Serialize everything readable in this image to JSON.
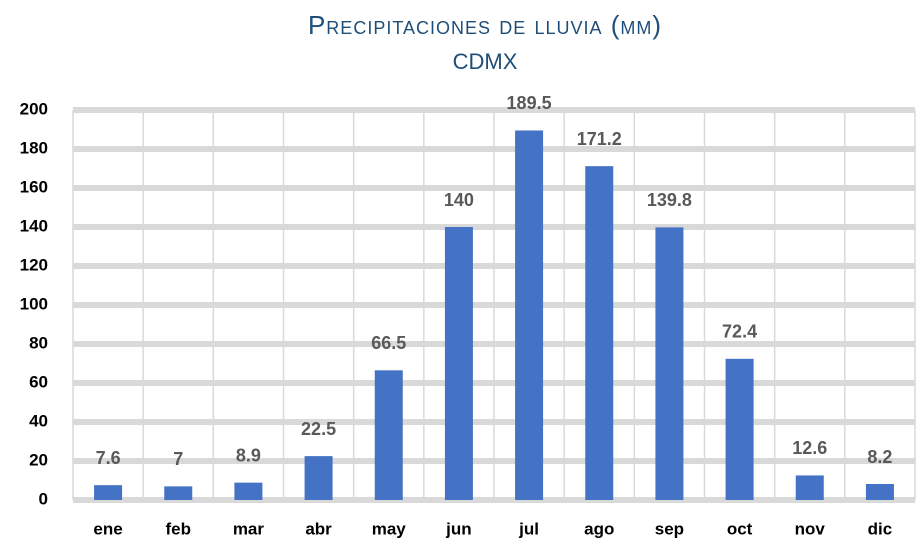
{
  "chart_data": {
    "type": "bar",
    "title": "Precipitaciones de lluvia (mm)",
    "subtitle": "CDMX",
    "categories": [
      "ene",
      "feb",
      "mar",
      "abr",
      "may",
      "jun",
      "jul",
      "ago",
      "sep",
      "oct",
      "nov",
      "dic"
    ],
    "values": [
      7.6,
      7,
      8.9,
      22.5,
      66.5,
      140,
      189.5,
      171.2,
      139.8,
      72.4,
      12.6,
      8.2
    ],
    "color": "#4472c4",
    "ylim": [
      0,
      200
    ],
    "yticks": [
      0,
      20,
      40,
      60,
      80,
      100,
      120,
      140,
      160,
      180,
      200
    ],
    "grid": true
  }
}
